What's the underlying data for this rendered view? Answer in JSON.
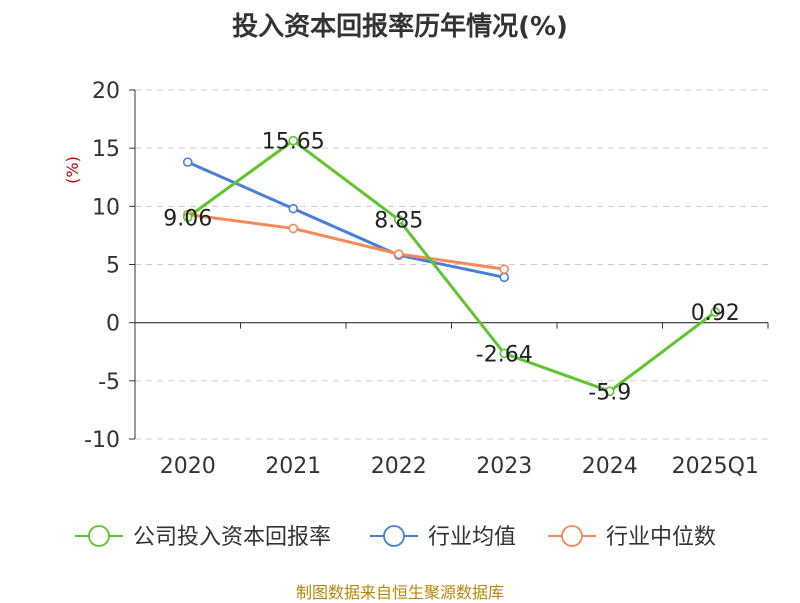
{
  "chart_data": {
    "type": "line",
    "title": "投入资本回报率历年情况(%)",
    "ylabel": "(%)",
    "categories": [
      "2020",
      "2021",
      "2022",
      "2023",
      "2024",
      "2025Q1"
    ],
    "ylim": [
      -10,
      20
    ],
    "yticks": [
      -10,
      -5,
      0,
      5,
      10,
      15,
      20
    ],
    "grid": true,
    "legend_position": "bottom",
    "series": [
      {
        "name": "公司投入资本回报率",
        "color": "#5fc52c",
        "values": [
          9.06,
          15.65,
          8.85,
          -2.64,
          -5.9,
          0.92
        ],
        "labels": [
          "9.06",
          "15.65",
          "8.85",
          "-2.64",
          "-5.9",
          "0.92"
        ]
      },
      {
        "name": "行业均值",
        "color": "#4a7edb",
        "values": [
          13.8,
          9.8,
          5.8,
          3.9,
          null,
          null
        ]
      },
      {
        "name": "行业中位数",
        "color": "#f5895a",
        "values": [
          9.3,
          8.1,
          5.9,
          4.6,
          null,
          null
        ]
      }
    ]
  },
  "footer": {
    "source": "制图数据来自恒生聚源数据库"
  }
}
